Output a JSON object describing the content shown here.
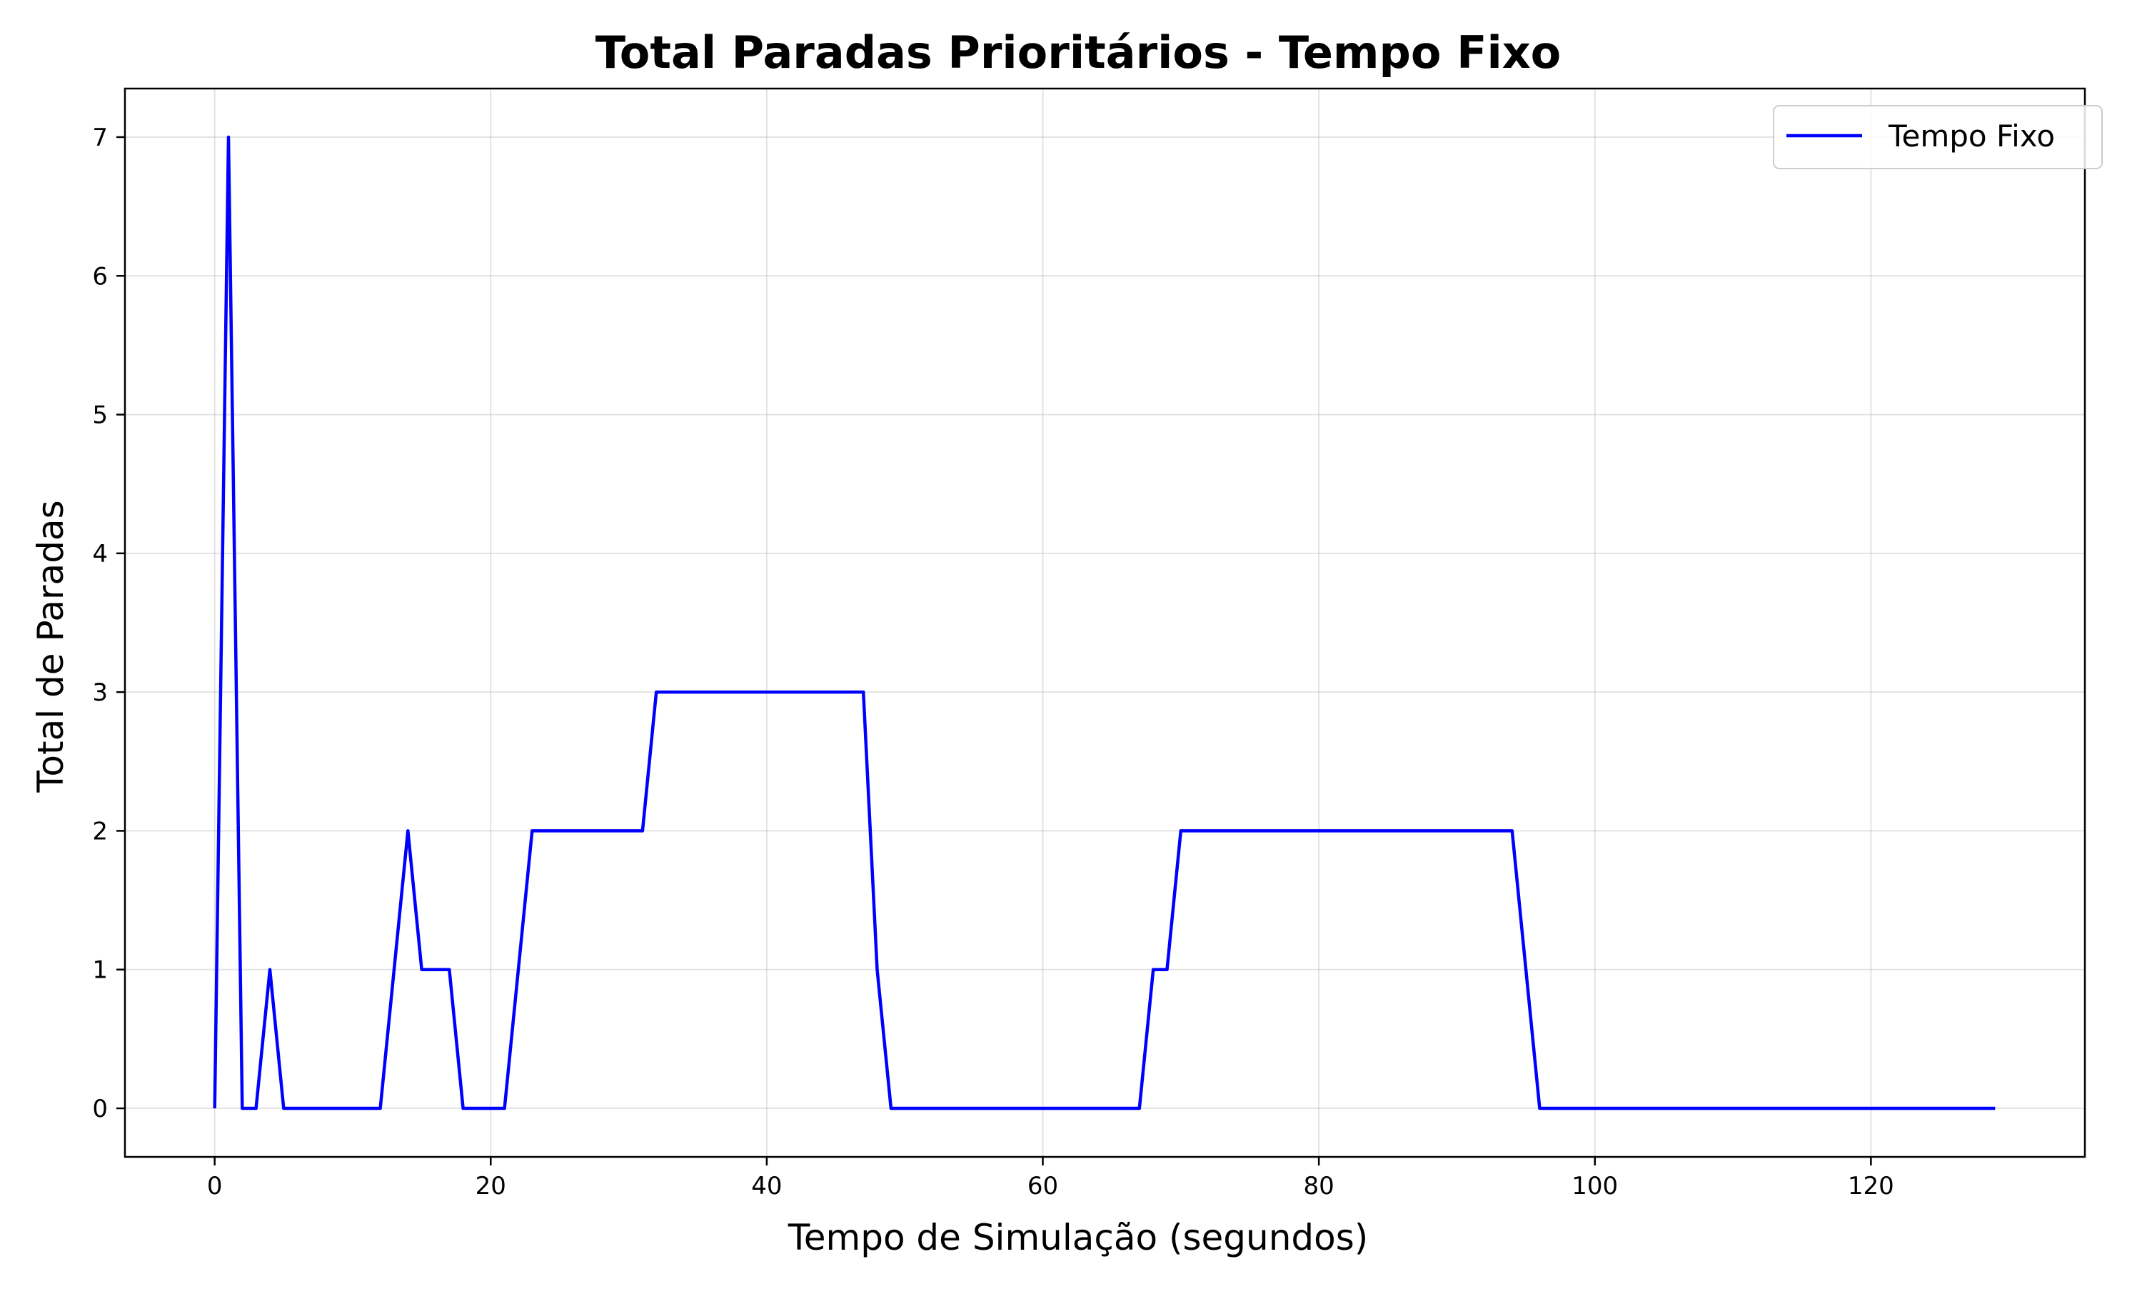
{
  "chart_data": {
    "type": "line",
    "title": "Total Paradas Prioritários - Tempo Fixo",
    "xlabel": "Tempo de Simulação (segundos)",
    "ylabel": "Total de Paradas",
    "xlim": [
      -6.5,
      135.5
    ],
    "ylim": [
      -0.35,
      7.35
    ],
    "xticks": [
      0,
      20,
      40,
      60,
      80,
      100,
      120
    ],
    "yticks": [
      0,
      1,
      2,
      3,
      4,
      5,
      6,
      7
    ],
    "grid": true,
    "legend_position": "top-right",
    "series": [
      {
        "name": "Tempo Fixo",
        "color": "#0000ff",
        "x": [
          0,
          1,
          2,
          3,
          4,
          5,
          12,
          14,
          15,
          17,
          18,
          21,
          23,
          31,
          32,
          47,
          48,
          49,
          67,
          68,
          69,
          70,
          94,
          96,
          129
        ],
        "y": [
          0,
          7,
          0,
          0,
          1,
          0,
          0,
          2,
          1,
          1,
          0,
          0,
          2,
          2,
          3,
          3,
          1,
          0,
          0,
          1,
          1,
          2,
          2,
          0,
          0
        ]
      }
    ]
  }
}
